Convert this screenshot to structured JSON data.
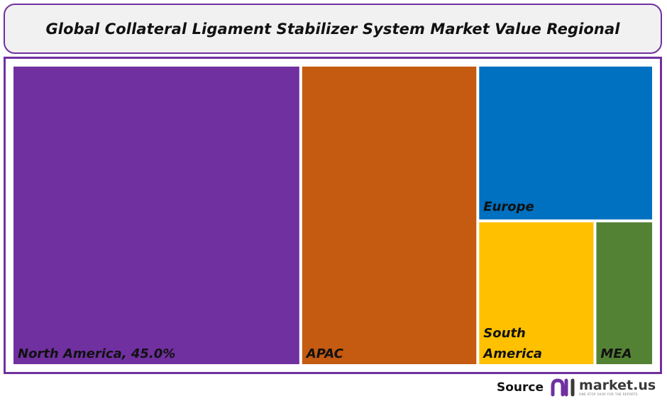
{
  "title": "Global Collateral Ligament Stabilizer System Market Value Regional",
  "source": {
    "label": "Source",
    "brand": "market.us",
    "tagline": "ONE STOP SHOP FOR THE REPORTS",
    "brand_color": "#7030a0"
  },
  "colors": {
    "frame": "#7030a0",
    "title_bg": "#f1f1f1"
  },
  "chart_data": {
    "type": "treemap",
    "title": "Global Collateral Ligament Stabilizer System Market Value Regional",
    "series": [
      {
        "name": "North America",
        "label": "North America, 45.0%",
        "value": 45.0,
        "color": "#7030a0"
      },
      {
        "name": "APAC",
        "label": "APAC",
        "value": 27.6,
        "color": "#c55a11"
      },
      {
        "name": "Europe",
        "label": "Europe",
        "value": 14.2,
        "color": "#0070c0"
      },
      {
        "name": "South America",
        "label": "South\nAmerica",
        "value": 8.8,
        "color": "#ffc000"
      },
      {
        "name": "MEA",
        "label": "MEA",
        "value": 4.4,
        "color": "#548235"
      }
    ]
  }
}
